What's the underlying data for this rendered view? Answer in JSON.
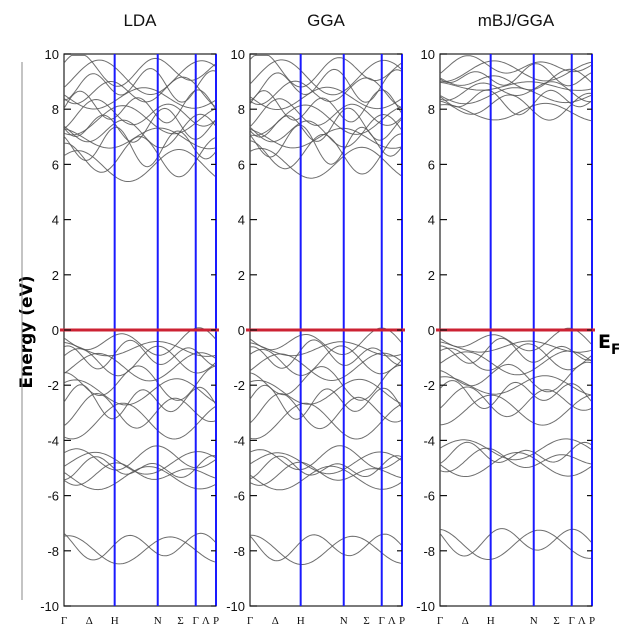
{
  "chart_data": {
    "type": "line",
    "ylabel": "Energy (eV)",
    "fermi_label": "E",
    "fermi_label_sub": "F",
    "ylim": [
      -10,
      10
    ],
    "yticks": [
      -10,
      -8,
      -6,
      -4,
      -2,
      0,
      2,
      4,
      6,
      8,
      10
    ],
    "kpath_labels": [
      "Γ",
      "Δ",
      "H",
      "N",
      "Σ",
      "Γ",
      "Λ",
      "P"
    ],
    "kpath_positions": [
      0,
      0.5,
      1.0,
      1.85,
      2.3,
      2.6,
      2.8,
      3.0
    ],
    "high_symmetry_lines": [
      1.0,
      1.85,
      2.6,
      3.0
    ],
    "fermi_level": 0,
    "colors": {
      "bands": "#555555",
      "symmetry_lines": "#1a1aff",
      "fermi": "#cc2233"
    },
    "panels": [
      {
        "title": "LDA",
        "valence_groups": [
          {
            "base": -7.9,
            "amp": 0.5,
            "count": 2,
            "spread": 0.15
          },
          {
            "base": -5.0,
            "amp": 0.3,
            "count": 5,
            "spread": 0.18
          },
          {
            "base": -2.6,
            "amp": 0.5,
            "count": 5,
            "spread": 0.35
          },
          {
            "base": -0.9,
            "amp": 0.4,
            "count": 5,
            "spread": 0.22
          }
        ],
        "conduction_groups": [
          {
            "base": 6.3,
            "amp": 0.6,
            "count": 3,
            "spread": 0.35
          },
          {
            "base": 7.5,
            "amp": 0.5,
            "count": 6,
            "spread": 0.22
          },
          {
            "base": 8.9,
            "amp": 0.5,
            "count": 5,
            "spread": 0.25
          }
        ]
      },
      {
        "title": "GGA",
        "valence_groups": [
          {
            "base": -7.9,
            "amp": 0.5,
            "count": 2,
            "spread": 0.15
          },
          {
            "base": -5.0,
            "amp": 0.3,
            "count": 5,
            "spread": 0.18
          },
          {
            "base": -2.6,
            "amp": 0.5,
            "count": 5,
            "spread": 0.35
          },
          {
            "base": -0.9,
            "amp": 0.4,
            "count": 5,
            "spread": 0.22
          }
        ],
        "conduction_groups": [
          {
            "base": 6.4,
            "amp": 0.6,
            "count": 3,
            "spread": 0.35
          },
          {
            "base": 7.5,
            "amp": 0.5,
            "count": 6,
            "spread": 0.22
          },
          {
            "base": 8.9,
            "amp": 0.5,
            "count": 5,
            "spread": 0.25
          }
        ]
      },
      {
        "title": "mBJ/GGA",
        "valence_groups": [
          {
            "base": -7.7,
            "amp": 0.5,
            "count": 2,
            "spread": 0.15
          },
          {
            "base": -4.6,
            "amp": 0.3,
            "count": 4,
            "spread": 0.18
          },
          {
            "base": -2.3,
            "amp": 0.4,
            "count": 5,
            "spread": 0.3
          },
          {
            "base": -0.8,
            "amp": 0.35,
            "count": 5,
            "spread": 0.2
          }
        ],
        "conduction_groups": [
          {
            "base": 8.3,
            "amp": 0.35,
            "count": 5,
            "spread": 0.2
          },
          {
            "base": 9.2,
            "amp": 0.3,
            "count": 5,
            "spread": 0.18
          }
        ]
      }
    ]
  }
}
